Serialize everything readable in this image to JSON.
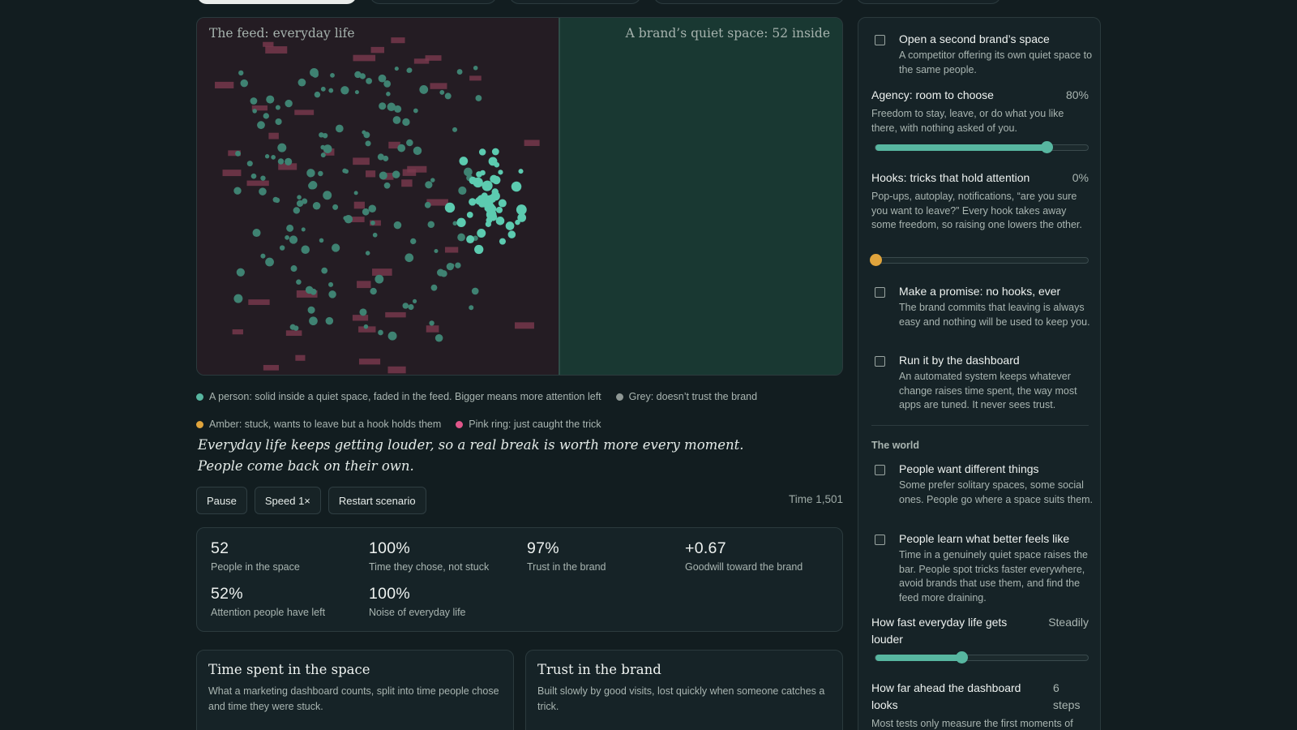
{
  "sim": {
    "feed_label": "The feed: everyday life",
    "space_label": "A brand’s quiet space: 52 inside"
  },
  "legend": [
    {
      "text": "A person: solid inside a quiet space, faded in the feed. Bigger means more attention left",
      "color": "#57b6a0"
    },
    {
      "text": "Grey: doesn’t trust the brand",
      "color": "#8e9794"
    },
    {
      "text": "Amber: stuck, wants to leave but a hook holds them",
      "color": "#e0a43c"
    },
    {
      "text": "Pink ring: just caught the trick",
      "color": "#e0568a"
    }
  ],
  "caption": "Everyday life keeps getting louder, so a real break is worth more every moment. People come back on their own.",
  "controls": {
    "pause": "Pause",
    "speed": "Speed 1×",
    "restart": "Restart scenario",
    "time": "Time 1,501"
  },
  "stats": [
    {
      "value": "52",
      "label": "People in the space"
    },
    {
      "value": "100%",
      "label": "Time they chose, not stuck"
    },
    {
      "value": "97%",
      "label": "Trust in the brand"
    },
    {
      "value": "+0.67",
      "label": "Goodwill toward the brand"
    },
    {
      "value": "52%",
      "label": "Attention people have left"
    },
    {
      "value": "100%",
      "label": "Noise of everyday life"
    }
  ],
  "cards": [
    {
      "title": "Time spent in the space",
      "desc": "What a marketing dashboard counts, split into time people chose and time they were stuck."
    },
    {
      "title": "Trust in the brand",
      "desc": "Built slowly by good visits, lost quickly when someone catches a trick."
    }
  ],
  "sidebar": {
    "second_brand": {
      "title": "Open a second brand’s space",
      "desc": "A competitor offering its own quiet space to the same people.",
      "checked": false
    },
    "agency": {
      "title": "Agency: room to choose",
      "value": "80%",
      "level": 0.8,
      "desc": "Freedom to stay, leave, or do what you like there, with nothing asked of you."
    },
    "hooks": {
      "title": "Hooks: tricks that hold attention",
      "value": "0%",
      "level": 0.0,
      "desc": "Pop-ups, autoplay, notifications, “are you sure you want to leave?” Every hook takes away some freedom, so raising one lowers the other."
    },
    "promise": {
      "title": "Make a promise: no hooks, ever",
      "desc": "The brand commits that leaving is always easy and nothing will be used to keep you.",
      "checked": false
    },
    "dashboard": {
      "title": "Run it by the dashboard",
      "desc": "An automated system keeps whatever change raises time spent, the way most apps are tuned. It never sees trust.",
      "checked": false
    },
    "world_heading": "The world",
    "different": {
      "title": "People want different things",
      "desc": "Some prefer solitary spaces, some social ones. People go where a space suits them.",
      "checked": false
    },
    "learn": {
      "title": "People learn what better feels like",
      "desc": "Time in a genuinely quiet space raises the bar. People spot tricks faster everywhere, avoid brands that use them, and find the feed more draining.",
      "checked": false
    },
    "louder": {
      "title": "How fast everyday life gets louder",
      "value": "Steadily",
      "level": 0.4
    },
    "ahead": {
      "title": "How far ahead the dashboard looks",
      "value": "6 steps",
      "desc": "Most tests only measure the first moments of"
    }
  },
  "colors": {
    "accent": "#57b6a0",
    "amber": "#e0a43c",
    "pink_block": "#7a3a4d",
    "feed_bg": "#241c23",
    "space_bg": "#193832"
  }
}
